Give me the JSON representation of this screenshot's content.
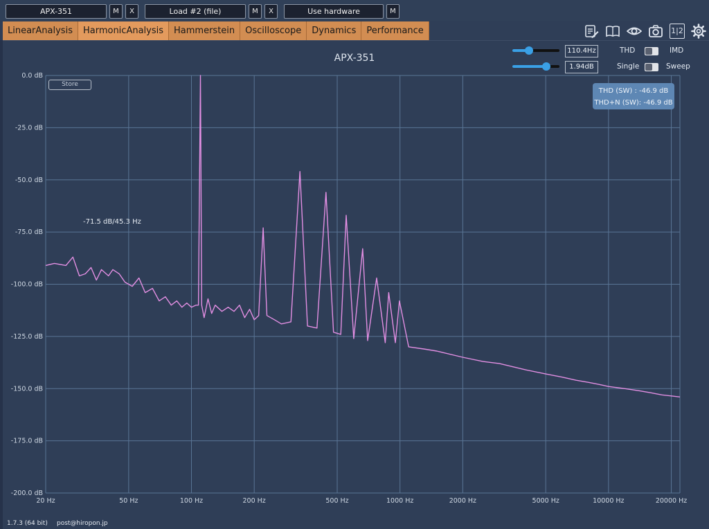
{
  "toolbar": {
    "device": "APX-351",
    "load": "Load #2 (file)",
    "hardware": "Use hardware",
    "m_label": "M",
    "x_label": "X"
  },
  "tabs": [
    "LinearAnalysis",
    "HarmonicAnalysis",
    "Hammerstein",
    "Oscilloscope",
    "Dynamics",
    "Performance"
  ],
  "icons": [
    "edit-notes-icon",
    "book-icon",
    "eye-icon",
    "camera-icon",
    "split-view-icon",
    "gear-icon"
  ],
  "split_label": "1|2",
  "panel": {
    "title": "APX-351",
    "store_label": "Store",
    "freq_value": "110.4Hz",
    "level_value": "1.94dB",
    "freq_slider_level": 0.35,
    "level_slider_level": 0.72,
    "thd_label": "THD",
    "imd_label": "IMD",
    "single_label": "Single",
    "sweep_label": "Sweep",
    "readout": {
      "thd": "THD (SW) : -46.9 dB",
      "thdn": "THD+N (SW): -46.9 dB"
    },
    "annotation": "-71.5 dB/45.3 Hz"
  },
  "chart_data": {
    "type": "line",
    "title": "APX-351",
    "xscale": "log",
    "xlim": [
      20,
      22000
    ],
    "ylim": [
      -200,
      0
    ],
    "grid": true,
    "x_ticks": [
      20,
      50,
      100,
      200,
      500,
      1000,
      2000,
      5000,
      10000,
      20000
    ],
    "x_tick_labels": [
      "20 Hz",
      "50 Hz",
      "100 Hz",
      "200 Hz",
      "500 Hz",
      "1000 Hz",
      "2000 Hz",
      "5000 Hz",
      "10000 Hz",
      "20000 Hz"
    ],
    "y_ticks": [
      0,
      -25,
      -50,
      -75,
      -100,
      -125,
      -150,
      -175,
      -200
    ],
    "y_tick_labels": [
      "0.0 dB",
      "-25.0 dB",
      "-50.0 dB",
      "-75.0 dB",
      "-100.0 dB",
      "-125.0 dB",
      "-150.0 dB",
      "-175.0 dB",
      "-200.0 dB"
    ],
    "color": "#e38fe3",
    "series": [
      {
        "x": [
          20,
          22,
          25,
          27,
          29,
          31,
          33,
          35,
          37,
          40,
          42,
          45,
          48,
          52,
          56,
          60,
          65,
          70,
          75,
          80,
          85,
          90,
          95,
          100,
          105,
          108,
          110.4,
          112,
          115,
          120,
          125,
          130,
          140,
          150,
          160,
          170,
          180,
          190,
          200,
          210,
          220.8,
          230,
          250,
          270,
          300,
          331.2,
          360,
          400,
          441.6,
          480,
          520,
          552,
          600,
          662.4,
          700,
          772.8,
          850,
          883.2,
          950,
          993.6,
          1100,
          1300,
          1500,
          2000,
          2500,
          3000,
          4000,
          5000,
          6000,
          7000,
          8000,
          9000,
          10000,
          12000,
          14000,
          16000,
          18000,
          20000,
          22000
        ],
        "y": [
          -91,
          -90,
          -91,
          -87,
          -96,
          -95,
          -92,
          -98,
          -93,
          -96,
          -93,
          -95,
          -99,
          -101,
          -97,
          -104,
          -102,
          -108,
          -106,
          -110,
          -108,
          -111,
          -109,
          -111,
          -110,
          -110,
          0,
          -110,
          -116,
          -107,
          -114,
          -110,
          -113,
          -111,
          -113,
          -110,
          -116,
          -112,
          -117,
          -115,
          -73,
          -115,
          -117,
          -119,
          -118,
          -46,
          -120,
          -121,
          -56,
          -123,
          -124,
          -67,
          -126,
          -83,
          -127,
          -97,
          -128,
          -104,
          -128,
          -108,
          -130,
          -131,
          -132,
          -135,
          -137,
          -138,
          -141,
          -143,
          -144.5,
          -146,
          -147,
          -148,
          -149,
          -150,
          -151,
          -152,
          -153,
          -153.5,
          -154
        ]
      }
    ]
  },
  "footer": {
    "version": "1.7.3 (64 bit)",
    "email": "post@hiropon.jp"
  }
}
